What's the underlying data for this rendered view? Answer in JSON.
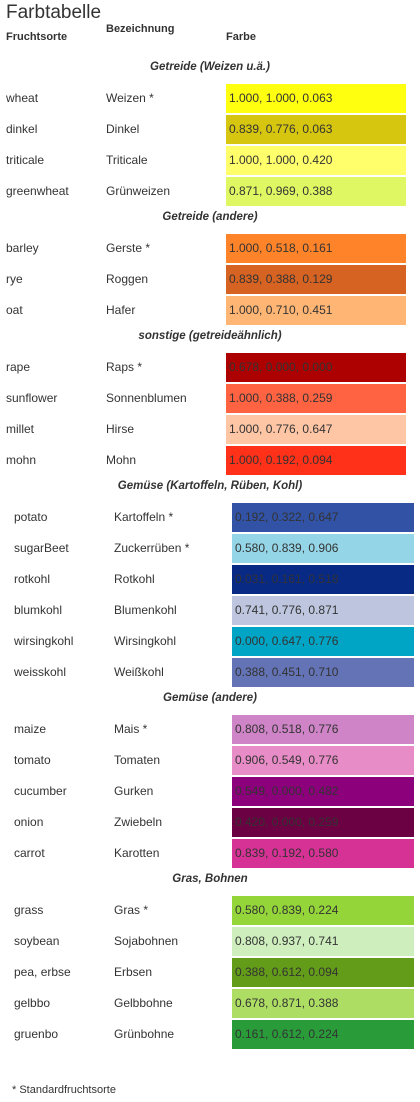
{
  "header": {
    "title": "Farbtabelle",
    "columns": [
      "Fruchtsorte",
      "Bezeichnung",
      "Farbe"
    ]
  },
  "groups": [
    {
      "title": "Getreide (Weizen u.ä.)",
      "rows": [
        [
          "wheat",
          "Weizen *",
          "1.000, 1.000, 0.063"
        ],
        [
          "dinkel",
          "Dinkel",
          "0.839, 0.776, 0.063"
        ],
        [
          "triticale",
          "Triticale",
          "1.000, 1.000, 0.420"
        ],
        [
          "greenwheat",
          "Grünweizen",
          "0.871, 0.969, 0.388"
        ]
      ]
    },
    {
      "title": "Getreide (andere)",
      "rows": [
        [
          "barley",
          "Gerste *",
          "1.000, 0.518, 0.161"
        ],
        [
          "rye",
          "Roggen",
          "0.839, 0.388, 0.129"
        ],
        [
          "oat",
          "Hafer",
          "1.000, 0.710, 0.451"
        ]
      ]
    },
    {
      "title": "sonstige (getreideähnlich)",
      "rows": [
        [
          "rape",
          "Raps *",
          "0.678, 0.000, 0.000"
        ],
        [
          "sunflower",
          "Sonnenblumen",
          "1.000, 0.388, 0.259"
        ],
        [
          "millet",
          "Hirse",
          "1.000, 0.776, 0.647"
        ],
        [
          "mohn",
          "Mohn",
          "1.000, 0.192, 0.094"
        ]
      ]
    },
    {
      "title": "Gemüse (Kartoffeln, Rüben, Kohl)",
      "rows": [
        [
          "potato",
          "Kartoffeln *",
          "0.192, 0.322, 0.647"
        ],
        [
          "sugarBeet",
          "Zuckerrüben *",
          "0.580, 0.839, 0.906"
        ],
        [
          "rotkohl",
          "Rotkohl",
          "0.031, 0.161, 0.518"
        ],
        [
          "blumkohl",
          "Blumenkohl",
          "0.741, 0.776, 0.871"
        ],
        [
          "wirsingkohl",
          "Wirsingkohl",
          "0.000, 0.647, 0.776"
        ],
        [
          "weisskohl",
          "Weißkohl",
          "0.388, 0.451, 0.710"
        ]
      ]
    },
    {
      "title": "Gemüse (andere)",
      "rows": [
        [
          "maize",
          "Mais *",
          "0.808, 0.518, 0.776"
        ],
        [
          "tomato",
          "Tomaten",
          "0.906, 0.549, 0.776"
        ],
        [
          "cucumber",
          "Gurken",
          "0.549, 0.000, 0.482"
        ],
        [
          "onion",
          "Zwiebeln",
          "0.420, 0.000, 0.259"
        ],
        [
          "carrot",
          "Karotten",
          "0.839, 0.192, 0.580"
        ]
      ]
    },
    {
      "title": "Gras, Bohnen",
      "rows": [
        [
          "grass",
          "Gras *",
          "0.580, 0.839, 0.224"
        ],
        [
          "soybean",
          "Sojabohnen",
          "0.808, 0.937, 0.741"
        ],
        [
          "pea, erbse",
          "Erbsen",
          "0.388, 0.612, 0.094"
        ],
        [
          "gelbbo",
          "Gelbbohne",
          "0.678, 0.871, 0.388"
        ],
        [
          "gruenbo",
          "Grünbohne",
          "0.161, 0.612, 0.224"
        ]
      ]
    }
  ],
  "footnote": "* Standardfruchtsorte"
}
